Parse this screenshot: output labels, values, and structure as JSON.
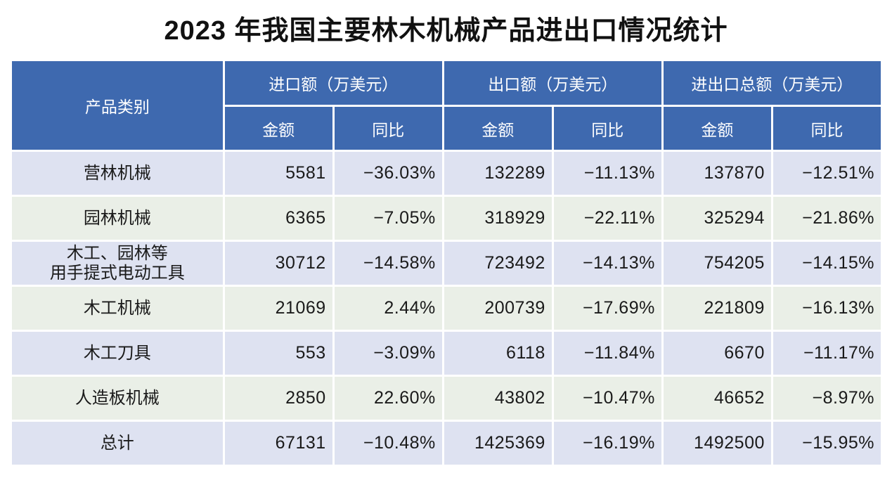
{
  "title": "2023 年我国主要林木机械产品进出口情况统计",
  "colors": {
    "header_bg": "#3e69af",
    "header_text": "#ffffff",
    "row_odd_bg": "#dee2f1",
    "row_even_bg": "#eaefe7",
    "body_text": "#1a1a1a"
  },
  "table": {
    "product_header": "产品类别",
    "groups": [
      {
        "label": "进口额（万美元）"
      },
      {
        "label": "出口额（万美元）"
      },
      {
        "label": "进出口总额（万美元）"
      }
    ],
    "sub": {
      "amount": "金额",
      "yoy": "同比"
    },
    "rows": [
      {
        "product": "营林机械",
        "values": [
          "5581",
          "−36.03%",
          "132289",
          "−11.13%",
          "137870",
          "−12.51%"
        ]
      },
      {
        "product": "园林机械",
        "values": [
          "6365",
          "−7.05%",
          "318929",
          "−22.11%",
          "325294",
          "−21.86%"
        ]
      },
      {
        "product": "木工、园林等\n用手提式电动工具",
        "values": [
          "30712",
          "−14.58%",
          "723492",
          "−14.13%",
          "754205",
          "−14.15%"
        ]
      },
      {
        "product": "木工机械",
        "values": [
          "21069",
          "2.44%",
          "200739",
          "−17.69%",
          "221809",
          "−16.13%"
        ]
      },
      {
        "product": "木工刀具",
        "values": [
          "553",
          "−3.09%",
          "6118",
          "−11.84%",
          "6670",
          "−11.17%"
        ]
      },
      {
        "product": "人造板机械",
        "values": [
          "2850",
          "22.60%",
          "43802",
          "−10.47%",
          "46652",
          "−8.97%"
        ]
      },
      {
        "product": "总计",
        "values": [
          "67131",
          "−10.48%",
          "1425369",
          "−16.19%",
          "1492500",
          "−15.95%"
        ]
      }
    ]
  },
  "chart_data": {
    "type": "table",
    "title": "2023 年我国主要林木机械产品进出口情况统计",
    "unit": "万美元",
    "columns": [
      "产品类别",
      "进口额-金额",
      "进口额-同比",
      "出口额-金额",
      "出口额-同比",
      "进出口总额-金额",
      "进出口总额-同比"
    ],
    "rows": [
      [
        "营林机械",
        5581,
        "−36.03%",
        132289,
        "−11.13%",
        137870,
        "−12.51%"
      ],
      [
        "园林机械",
        6365,
        "−7.05%",
        318929,
        "−22.11%",
        325294,
        "−21.86%"
      ],
      [
        "木工、园林等用手提式电动工具",
        30712,
        "−14.58%",
        723492,
        "−14.13%",
        754205,
        "−14.15%"
      ],
      [
        "木工机械",
        21069,
        "2.44%",
        200739,
        "−17.69%",
        221809,
        "−16.13%"
      ],
      [
        "木工刀具",
        553,
        "−3.09%",
        6118,
        "−11.84%",
        6670,
        "−11.17%"
      ],
      [
        "人造板机械",
        2850,
        "22.60%",
        43802,
        "−10.47%",
        46652,
        "−8.97%"
      ],
      [
        "总计",
        67131,
        "−10.48%",
        1425369,
        "−16.19%",
        1492500,
        "−15.95%"
      ]
    ]
  }
}
